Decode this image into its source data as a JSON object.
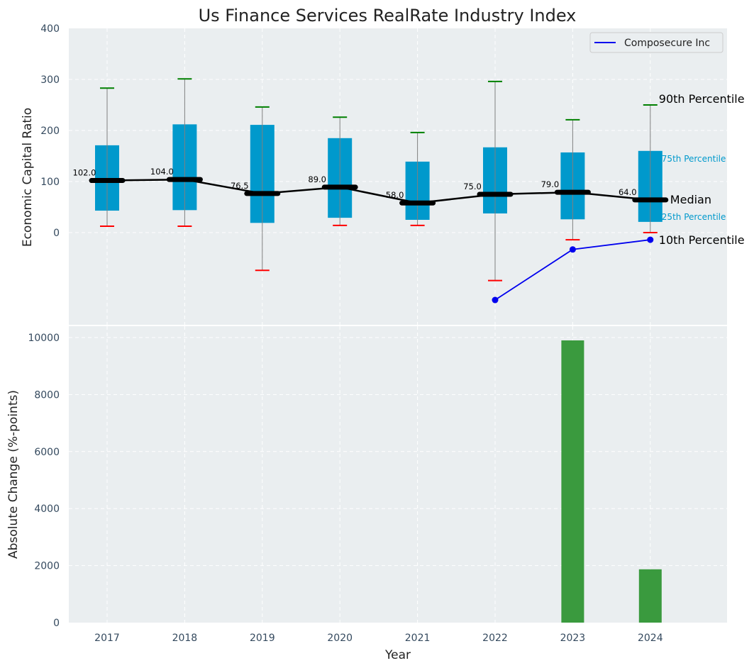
{
  "chart_data": [
    {
      "type": "box",
      "title": "Us Finance Services RealRate Industry Index",
      "xlabel": "",
      "ylabel": "Economic Capital Ratio",
      "ylim": [
        -175,
        400
      ],
      "yticks": [
        0,
        100,
        200,
        300,
        400
      ],
      "grid": true,
      "categories": [
        "2017",
        "2018",
        "2019",
        "2020",
        "2021",
        "2022",
        "2023",
        "2024"
      ],
      "percentiles": {
        "p90": [
          283,
          301,
          246,
          226,
          196,
          296,
          221,
          250
        ],
        "p75": [
          171,
          212,
          211,
          185,
          139,
          167,
          157,
          160
        ],
        "median": [
          102.0,
          104.0,
          76.5,
          89.0,
          58.0,
          75.0,
          79.0,
          64.0
        ],
        "p25": [
          43,
          44,
          19,
          29,
          25,
          37.5,
          26,
          21
        ],
        "p10": [
          12.5,
          12.5,
          -74,
          14,
          14,
          -94,
          -14,
          0
        ]
      },
      "median_labels": [
        "102.0",
        "104.0",
        "76.5",
        "89.0",
        "58.0",
        "75.0",
        "79.0",
        "64.0"
      ],
      "series": [
        {
          "name": "Composecure Inc",
          "color": "#0000ee",
          "x": [
            "2022",
            "2023",
            "2024"
          ],
          "values": [
            -132,
            -33,
            -14
          ]
        }
      ],
      "annotations": {
        "p90": "90th Percentile",
        "p75": "75th Percentile",
        "median": "Median",
        "p25": "25th Percentile",
        "p10": "10th Percentile"
      },
      "legend": {
        "position": "top-right",
        "entries": [
          "Composecure Inc"
        ]
      },
      "colors": {
        "box": "#0099cc",
        "median": "#000000",
        "p90_cap": "#008000",
        "p10_cap": "#ff0000",
        "whisker": "#808080",
        "background": "#eaeef0"
      }
    },
    {
      "type": "bar",
      "xlabel": "Year",
      "ylabel": "Absolute Change (%-points)",
      "ylim": [
        0,
        10400
      ],
      "yticks": [
        0,
        2000,
        4000,
        6000,
        8000,
        10000
      ],
      "grid": true,
      "categories": [
        "2017",
        "2018",
        "2019",
        "2020",
        "2021",
        "2022",
        "2023",
        "2024"
      ],
      "values": [
        null,
        null,
        null,
        null,
        null,
        null,
        9900,
        1870
      ],
      "colors": {
        "bar": "#3a9a3e",
        "background": "#eaeef0"
      }
    }
  ]
}
